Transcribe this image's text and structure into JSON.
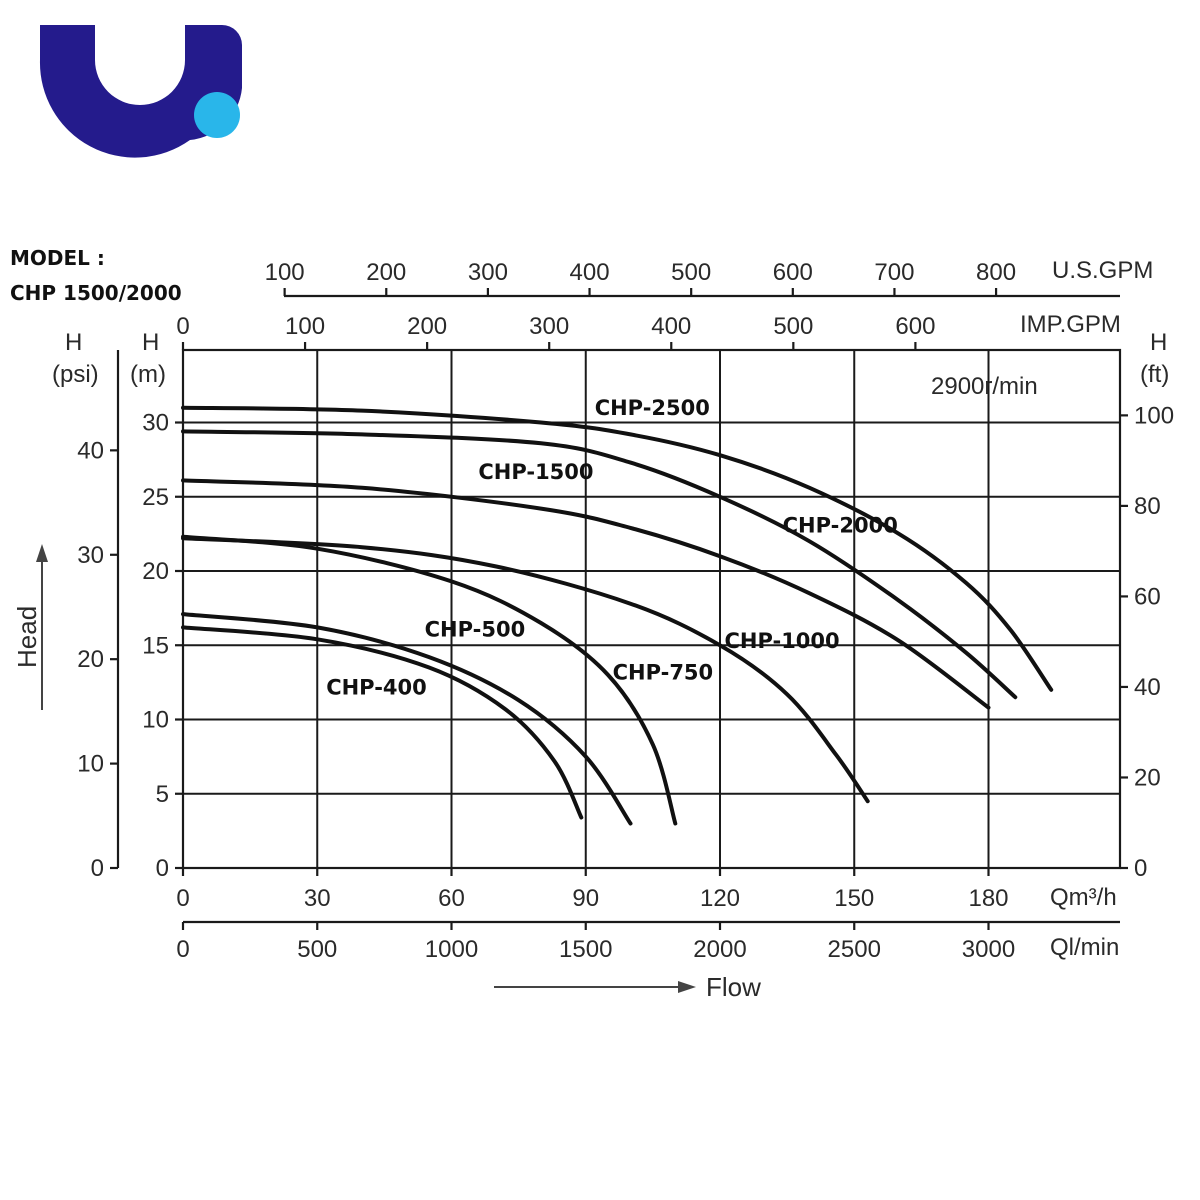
{
  "logo": {
    "name": "brand-logo",
    "colors": {
      "primary": "#241b8c",
      "accent": "#29b6ea"
    }
  },
  "model_label": {
    "line1": "MODEL :",
    "line2": "CHP 1500/2000"
  },
  "chart_data": {
    "type": "line",
    "speed_label": "2900r/min",
    "y_axis_left_m": {
      "label_top": "H",
      "label_unit": "(m)",
      "ticks": [
        0,
        5,
        10,
        15,
        20,
        25,
        30
      ],
      "lim": [
        0,
        32
      ]
    },
    "y_axis_left_psi": {
      "label_top": "H",
      "label_unit": "(psi)",
      "ticks": [
        0,
        10,
        20,
        30,
        40
      ]
    },
    "y_axis_right_ft": {
      "label_top": "H",
      "label_unit": "(ft)",
      "ticks": [
        0,
        20,
        40,
        60,
        80,
        100
      ]
    },
    "y_title": "Head",
    "x_axis_m3h": {
      "unit": "Qm³/h",
      "ticks": [
        0,
        30,
        60,
        90,
        120,
        150,
        180
      ],
      "lim": [
        0,
        210
      ]
    },
    "x_axis_lmin": {
      "unit": "Ql/min",
      "ticks": [
        0,
        500,
        1000,
        1500,
        2000,
        2500,
        3000
      ]
    },
    "x_axis_usgpm": {
      "unit": "U.S.GPM",
      "ticks": [
        100,
        200,
        300,
        400,
        500,
        600,
        700,
        800
      ]
    },
    "x_axis_impgpm": {
      "unit": "IMP.GPM",
      "ticks": [
        0,
        100,
        200,
        300,
        400,
        500,
        600
      ]
    },
    "x_title": "Flow",
    "series": [
      {
        "name": "CHP-2500",
        "x": [
          0,
          40,
          80,
          100,
          120,
          140,
          160,
          175,
          185,
          194
        ],
        "y": [
          31,
          30.8,
          30,
          29.2,
          27.8,
          25.6,
          22.5,
          19.2,
          16,
          12
        ]
      },
      {
        "name": "CHP-2000",
        "x": [
          0,
          40,
          80,
          100,
          120,
          140,
          160,
          175,
          186
        ],
        "y": [
          29.4,
          29.2,
          28.6,
          27.3,
          25,
          22,
          18,
          14.5,
          11.5
        ]
      },
      {
        "name": "CHP-1500",
        "x": [
          0,
          40,
          80,
          100,
          120,
          140,
          160,
          180
        ],
        "y": [
          26.1,
          25.6,
          24.2,
          22.9,
          21,
          18.5,
          15.3,
          10.8
        ]
      },
      {
        "name": "CHP-1000",
        "x": [
          0,
          40,
          70,
          100,
          120,
          135,
          146,
          153
        ],
        "y": [
          22.2,
          21.6,
          20.3,
          17.8,
          15,
          11.7,
          7.6,
          4.5
        ]
      },
      {
        "name": "CHP-750",
        "x": [
          0,
          30,
          60,
          80,
          95,
          105,
          110
        ],
        "y": [
          22.3,
          21.5,
          19.3,
          16.5,
          13,
          8.3,
          3
        ]
      },
      {
        "name": "CHP-500",
        "x": [
          0,
          30,
          55,
          75,
          90,
          100
        ],
        "y": [
          17.1,
          16.2,
          14.2,
          11.3,
          7.5,
          3
        ]
      },
      {
        "name": "CHP-400",
        "x": [
          0,
          30,
          55,
          72,
          83,
          89
        ],
        "y": [
          16.2,
          15.4,
          13.5,
          10.7,
          7.2,
          3.4
        ]
      }
    ]
  }
}
